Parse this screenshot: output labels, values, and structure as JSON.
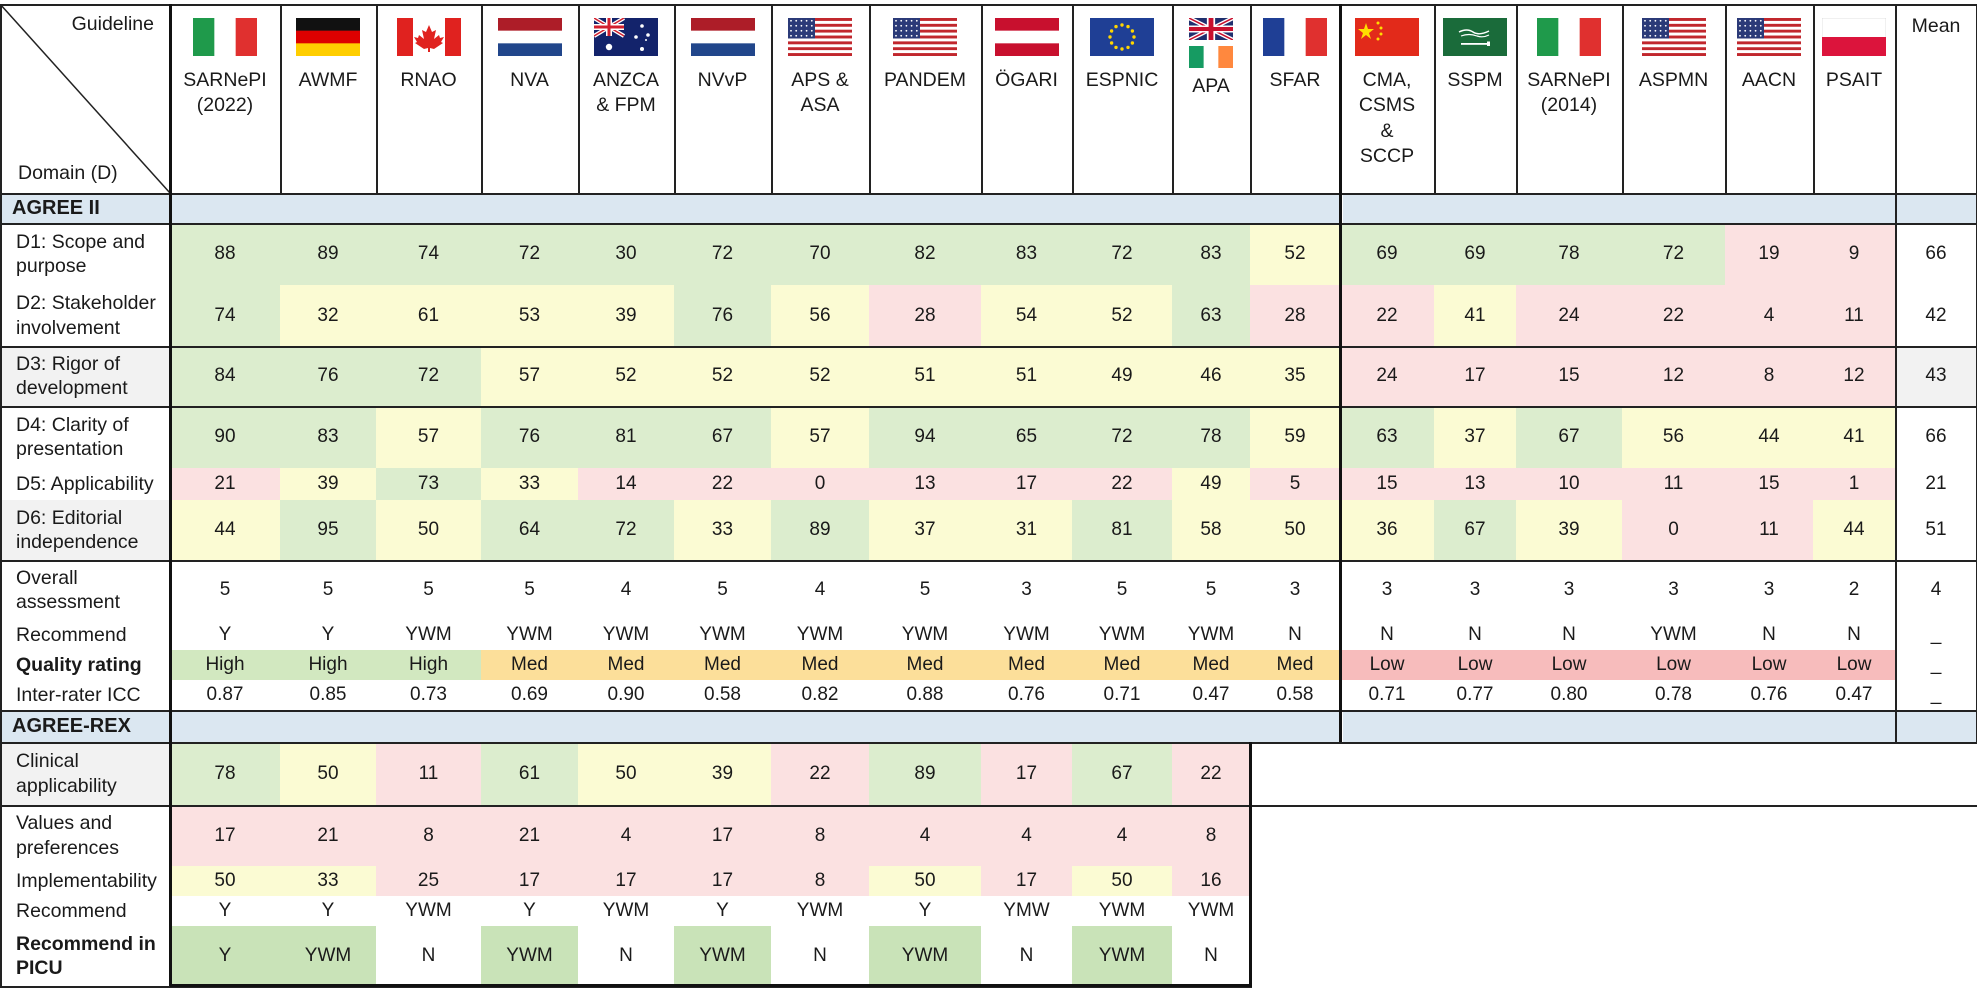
{
  "header": {
    "corner_top": "Guideline",
    "corner_bottom": "Domain (D)",
    "mean_label": "Mean"
  },
  "guidelines": [
    {
      "label": "SARNePI\n(2022)",
      "flag": "flag-italy-icon"
    },
    {
      "label": "AWMF",
      "flag": "flag-germany-icon"
    },
    {
      "label": "RNAO",
      "flag": "flag-canada-icon"
    },
    {
      "label": "NVA",
      "flag": "flag-netherlands-icon"
    },
    {
      "label": "ANZCA\n& FPM",
      "flag": "flag-australia-icon"
    },
    {
      "label": "NVvP",
      "flag": "flag-netherlands-icon"
    },
    {
      "label": "APS &\nASA",
      "flag": "flag-usa-icon"
    },
    {
      "label": "PANDEM",
      "flag": "flag-usa-icon"
    },
    {
      "label": "ÖGARI",
      "flag": "flag-austria-icon"
    },
    {
      "label": "ESPNIC",
      "flag": "flag-eu-icon"
    },
    {
      "label": "APA",
      "flag": "flag-uk-ireland-icon"
    },
    {
      "label": "SFAR",
      "flag": "flag-france-icon"
    },
    {
      "label": "CMA,\nCSMS\n&\nSCCP",
      "flag": "flag-china-icon"
    },
    {
      "label": "SSPM",
      "flag": "flag-saudi-icon"
    },
    {
      "label": "SARNePI\n(2014)",
      "flag": "flag-italy-icon"
    },
    {
      "label": "ASPMN",
      "flag": "flag-usa-icon"
    },
    {
      "label": "AACN",
      "flag": "flag-usa-icon"
    },
    {
      "label": "PSAIT",
      "flag": "flag-poland-icon"
    }
  ],
  "colors": {
    "green": "#dcedce",
    "yellow": "#fbfbd3",
    "pink": "#fbe1e1",
    "section": "#dbe7f1",
    "label_grey": "#f2f2f2",
    "high": "#d2e8c0",
    "med": "#fcdf9a",
    "low": "#f7bcbc",
    "rec_green": "#c9e3b8"
  },
  "agree2": {
    "section_label": "AGREE II",
    "rows": [
      {
        "label": "D1: Scope and\npurpose",
        "values": [
          "88",
          "89",
          "74",
          "72",
          "30",
          "72",
          "70",
          "82",
          "83",
          "72",
          "83",
          "52",
          "69",
          "69",
          "78",
          "72",
          "19",
          "9"
        ],
        "colors": [
          "g",
          "g",
          "g",
          "g",
          "g",
          "g",
          "g",
          "g",
          "g",
          "g",
          "g",
          "y",
          "g",
          "g",
          "g",
          "g",
          "p",
          "p"
        ],
        "mean": "66"
      },
      {
        "label": "D2: Stakeholder\ninvolvement",
        "values": [
          "74",
          "32",
          "61",
          "53",
          "39",
          "76",
          "56",
          "28",
          "54",
          "52",
          "63",
          "28",
          "22",
          "41",
          "24",
          "22",
          "4",
          "11"
        ],
        "colors": [
          "g",
          "y",
          "y",
          "y",
          "y",
          "g",
          "y",
          "p",
          "y",
          "y",
          "g",
          "p",
          "p",
          "y",
          "p",
          "p",
          "p",
          "p"
        ],
        "mean": "42"
      },
      {
        "label": "D3: Rigor of\ndevelopment",
        "values": [
          "84",
          "76",
          "72",
          "57",
          "52",
          "52",
          "52",
          "51",
          "51",
          "49",
          "46",
          "35",
          "24",
          "17",
          "15",
          "12",
          "8",
          "12"
        ],
        "colors": [
          "g",
          "g",
          "g",
          "y",
          "y",
          "y",
          "y",
          "y",
          "y",
          "y",
          "y",
          "y",
          "p",
          "p",
          "p",
          "p",
          "p",
          "p"
        ],
        "mean": "43"
      },
      {
        "label": "D4: Clarity of\npresentation",
        "values": [
          "90",
          "83",
          "57",
          "76",
          "81",
          "67",
          "57",
          "94",
          "65",
          "72",
          "78",
          "59",
          "63",
          "37",
          "67",
          "56",
          "44",
          "41"
        ],
        "colors": [
          "g",
          "g",
          "y",
          "g",
          "g",
          "g",
          "y",
          "g",
          "g",
          "g",
          "g",
          "y",
          "g",
          "y",
          "g",
          "y",
          "y",
          "y"
        ],
        "mean": "66"
      },
      {
        "label": "D5: Applicability",
        "values": [
          "21",
          "39",
          "73",
          "33",
          "14",
          "22",
          "0",
          "13",
          "17",
          "22",
          "49",
          "5",
          "15",
          "13",
          "10",
          "11",
          "15",
          "1"
        ],
        "colors": [
          "p",
          "y",
          "g",
          "y",
          "p",
          "p",
          "p",
          "p",
          "p",
          "p",
          "y",
          "p",
          "p",
          "p",
          "p",
          "p",
          "p",
          "p"
        ],
        "mean": "21"
      },
      {
        "label": "D6: Editorial\nindependence",
        "values": [
          "44",
          "95",
          "50",
          "64",
          "72",
          "33",
          "89",
          "37",
          "31",
          "81",
          "58",
          "50",
          "36",
          "67",
          "39",
          "0",
          "11",
          "44"
        ],
        "colors": [
          "y",
          "g",
          "y",
          "g",
          "g",
          "y",
          "g",
          "y",
          "y",
          "g",
          "y",
          "y",
          "y",
          "g",
          "y",
          "p",
          "p",
          "y"
        ],
        "mean": "51"
      }
    ],
    "overall": {
      "label": "Overall\nassessment",
      "values": [
        "5",
        "5",
        "5",
        "5",
        "4",
        "5",
        "4",
        "5",
        "3",
        "5",
        "5",
        "3",
        "3",
        "3",
        "3",
        "3",
        "3",
        "2"
      ],
      "mean": "4"
    },
    "recommend": {
      "label": "Recommend",
      "values": [
        "Y",
        "Y",
        "YWM",
        "YWM",
        "YWM",
        "YWM",
        "YWM",
        "YWM",
        "YWM",
        "YWM",
        "YWM",
        "N",
        "N",
        "N",
        "N",
        "YWM",
        "N",
        "N"
      ],
      "mean": "_"
    },
    "quality": {
      "label": "Quality rating",
      "values": [
        "High",
        "High",
        "High",
        "Med",
        "Med",
        "Med",
        "Med",
        "Med",
        "Med",
        "Med",
        "Med",
        "Med",
        "Low",
        "Low",
        "Low",
        "Low",
        "Low",
        "Low"
      ],
      "mean": "_"
    },
    "icc": {
      "label": "Inter-rater ICC",
      "values": [
        "0.87",
        "0.85",
        "0.73",
        "0.69",
        "0.90",
        "0.58",
        "0.82",
        "0.88",
        "0.76",
        "0.71",
        "0.47",
        "0.58",
        "0.71",
        "0.77",
        "0.80",
        "0.78",
        "0.76",
        "0.47"
      ],
      "mean": "_"
    }
  },
  "agree_rex": {
    "section_label": "AGREE-REX",
    "rows": [
      {
        "label": "Clinical\napplicability",
        "values": [
          "78",
          "50",
          "11",
          "61",
          "50",
          "39",
          "22",
          "89",
          "17",
          "67",
          "22"
        ],
        "colors": [
          "g",
          "y",
          "p",
          "g",
          "y",
          "y",
          "p",
          "g",
          "p",
          "g",
          "p"
        ]
      },
      {
        "label": "Values and\npreferences",
        "values": [
          "17",
          "21",
          "8",
          "21",
          "4",
          "17",
          "8",
          "4",
          "4",
          "4",
          "8"
        ],
        "colors": [
          "p",
          "p",
          "p",
          "p",
          "p",
          "p",
          "p",
          "p",
          "p",
          "p",
          "p"
        ]
      },
      {
        "label": "Implementability",
        "values": [
          "50",
          "33",
          "25",
          "17",
          "17",
          "17",
          "8",
          "50",
          "17",
          "50",
          "16"
        ],
        "colors": [
          "y",
          "y",
          "p",
          "p",
          "p",
          "p",
          "p",
          "y",
          "p",
          "y",
          "p"
        ]
      }
    ],
    "recommend": {
      "label": "Recommend",
      "values": [
        "Y",
        "Y",
        "YWM",
        "Y",
        "YWM",
        "Y",
        "YWM",
        "Y",
        "YMW",
        "YWM",
        "YWM"
      ]
    },
    "recommend_picu": {
      "label": "Recommend in\nPICU",
      "values": [
        "Y",
        "YWM",
        "N",
        "YWM",
        "N",
        "YWM",
        "N",
        "YWM",
        "N",
        "YWM",
        "N"
      ]
    }
  }
}
